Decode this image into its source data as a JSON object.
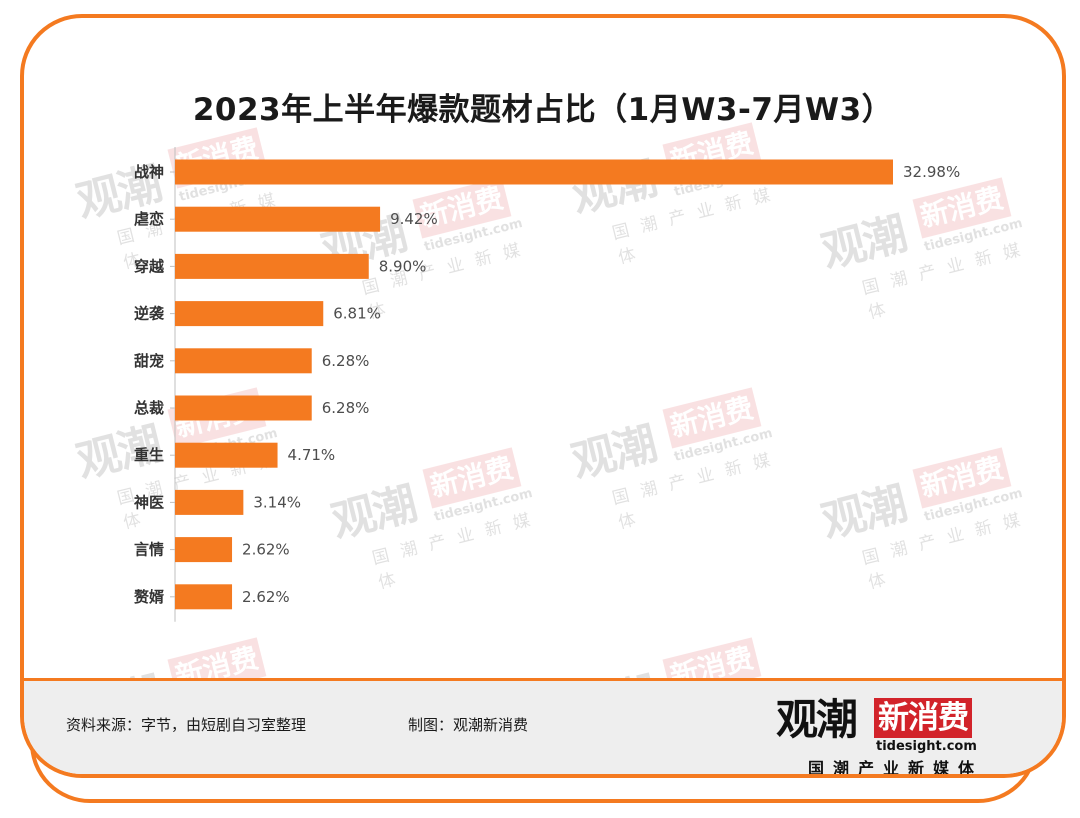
{
  "chart_data": {
    "type": "bar",
    "orientation": "horizontal",
    "title": "2023年上半年爆款题材占比（1月W3-7月W3）",
    "categories": [
      "战神",
      "虐恋",
      "穿越",
      "逆袭",
      "甜宠",
      "总裁",
      "重生",
      "神医",
      "言情",
      "赘婿"
    ],
    "values": [
      32.98,
      9.42,
      8.9,
      6.81,
      6.28,
      6.28,
      4.71,
      3.14,
      2.62,
      2.62
    ],
    "value_labels": [
      "32.98%",
      "9.42%",
      "8.90%",
      "6.81%",
      "6.28%",
      "6.28%",
      "4.71%",
      "3.14%",
      "2.62%",
      "2.62%"
    ],
    "xlim": [
      0,
      33
    ],
    "grid": false,
    "bar_color": "#f47a20"
  },
  "footer": {
    "source": "资料来源：字节，由短剧自习室整理",
    "maker": "制图：观潮新消费"
  },
  "brand": {
    "name_black": "观潮",
    "name_red": "新消费",
    "url": "tidesight.com",
    "tagline": "国潮产业新媒体"
  },
  "colors": {
    "accent": "#f47a20",
    "brand_red": "#d2232a",
    "footer_bg": "#eeeeee"
  }
}
